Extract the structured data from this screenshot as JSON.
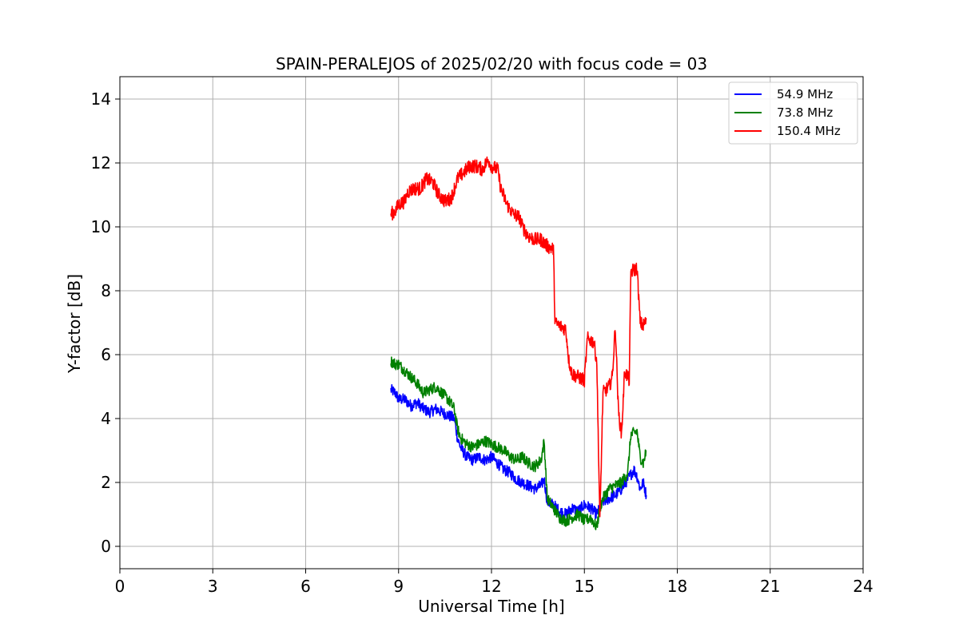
{
  "chart_data": {
    "type": "line",
    "title": "SPAIN-PERALEJOS of 2025/02/20 with focus code = 03",
    "xlabel": "Universal Time [h]",
    "ylabel": "Y-factor [dB]",
    "xlim": [
      0,
      24
    ],
    "ylim": [
      -0.7,
      14.7
    ],
    "xticks": [
      0,
      3,
      6,
      9,
      12,
      15,
      18,
      21,
      24
    ],
    "yticks": [
      0,
      2,
      4,
      6,
      8,
      10,
      12,
      14
    ],
    "grid": true,
    "legend_position": "top-right",
    "series": [
      {
        "name": "54.9 MHz",
        "color": "#0000ff",
        "points": [
          [
            8.75,
            4.9
          ],
          [
            8.9,
            4.8
          ],
          [
            9.0,
            4.6
          ],
          [
            9.2,
            4.6
          ],
          [
            9.4,
            4.4
          ],
          [
            9.6,
            4.5
          ],
          [
            9.8,
            4.3
          ],
          [
            10.0,
            4.2
          ],
          [
            10.2,
            4.3
          ],
          [
            10.4,
            4.2
          ],
          [
            10.6,
            4.1
          ],
          [
            10.8,
            4.0
          ],
          [
            10.9,
            3.4
          ],
          [
            11.0,
            3.1
          ],
          [
            11.2,
            2.8
          ],
          [
            11.4,
            2.7
          ],
          [
            11.6,
            2.8
          ],
          [
            11.8,
            2.7
          ],
          [
            12.0,
            2.8
          ],
          [
            12.2,
            2.6
          ],
          [
            12.4,
            2.4
          ],
          [
            12.6,
            2.3
          ],
          [
            12.8,
            2.1
          ],
          [
            13.0,
            2.0
          ],
          [
            13.2,
            1.9
          ],
          [
            13.4,
            1.8
          ],
          [
            13.6,
            1.9
          ],
          [
            13.7,
            2.1
          ],
          [
            13.8,
            1.4
          ],
          [
            14.0,
            1.3
          ],
          [
            14.2,
            1.1
          ],
          [
            14.4,
            1.0
          ],
          [
            14.6,
            1.2
          ],
          [
            14.8,
            1.1
          ],
          [
            15.0,
            1.3
          ],
          [
            15.2,
            1.2
          ],
          [
            15.4,
            1.0
          ],
          [
            15.5,
            1.2
          ],
          [
            15.6,
            1.4
          ],
          [
            15.8,
            1.5
          ],
          [
            16.0,
            1.6
          ],
          [
            16.2,
            1.8
          ],
          [
            16.4,
            2.1
          ],
          [
            16.6,
            2.4
          ],
          [
            16.7,
            2.2
          ],
          [
            16.8,
            1.8
          ],
          [
            16.9,
            2.0
          ],
          [
            17.0,
            1.6
          ]
        ]
      },
      {
        "name": "73.8 MHz",
        "color": "#008000",
        "points": [
          [
            8.75,
            5.8
          ],
          [
            8.9,
            5.7
          ],
          [
            9.0,
            5.7
          ],
          [
            9.2,
            5.5
          ],
          [
            9.4,
            5.3
          ],
          [
            9.6,
            5.1
          ],
          [
            9.8,
            4.8
          ],
          [
            10.0,
            4.9
          ],
          [
            10.2,
            5.0
          ],
          [
            10.4,
            4.8
          ],
          [
            10.6,
            4.6
          ],
          [
            10.8,
            4.3
          ],
          [
            10.9,
            3.7
          ],
          [
            11.0,
            3.4
          ],
          [
            11.2,
            3.2
          ],
          [
            11.4,
            3.1
          ],
          [
            11.6,
            3.2
          ],
          [
            11.8,
            3.3
          ],
          [
            12.0,
            3.2
          ],
          [
            12.2,
            3.1
          ],
          [
            12.4,
            3.0
          ],
          [
            12.6,
            2.8
          ],
          [
            12.8,
            2.7
          ],
          [
            13.0,
            2.8
          ],
          [
            13.2,
            2.6
          ],
          [
            13.4,
            2.5
          ],
          [
            13.6,
            2.7
          ],
          [
            13.7,
            3.3
          ],
          [
            13.8,
            1.5
          ],
          [
            14.0,
            1.2
          ],
          [
            14.2,
            0.9
          ],
          [
            14.4,
            0.8
          ],
          [
            14.6,
            0.9
          ],
          [
            14.8,
            1.0
          ],
          [
            15.0,
            0.8
          ],
          [
            15.2,
            0.9
          ],
          [
            15.4,
            0.6
          ],
          [
            15.5,
            1.2
          ],
          [
            15.6,
            1.5
          ],
          [
            15.8,
            1.8
          ],
          [
            16.0,
            1.9
          ],
          [
            16.2,
            2.0
          ],
          [
            16.4,
            2.3
          ],
          [
            16.5,
            3.5
          ],
          [
            16.7,
            3.6
          ],
          [
            16.8,
            2.8
          ],
          [
            16.9,
            2.6
          ],
          [
            17.0,
            3.0
          ]
        ]
      },
      {
        "name": "150.4 MHz",
        "color": "#ff0000",
        "points": [
          [
            8.75,
            10.4
          ],
          [
            8.9,
            10.5
          ],
          [
            9.0,
            10.7
          ],
          [
            9.2,
            10.8
          ],
          [
            9.3,
            11.1
          ],
          [
            9.5,
            11.2
          ],
          [
            9.7,
            11.2
          ],
          [
            9.9,
            11.5
          ],
          [
            10.1,
            11.4
          ],
          [
            10.3,
            11.0
          ],
          [
            10.5,
            10.8
          ],
          [
            10.7,
            10.9
          ],
          [
            10.8,
            11.2
          ],
          [
            10.9,
            11.5
          ],
          [
            11.1,
            11.7
          ],
          [
            11.3,
            11.9
          ],
          [
            11.5,
            11.9
          ],
          [
            11.7,
            11.8
          ],
          [
            11.9,
            12.1
          ],
          [
            12.0,
            11.9
          ],
          [
            12.2,
            11.8
          ],
          [
            12.3,
            11.2
          ],
          [
            12.5,
            10.7
          ],
          [
            12.7,
            10.4
          ],
          [
            12.9,
            10.3
          ],
          [
            13.0,
            10.0
          ],
          [
            13.2,
            9.7
          ],
          [
            13.4,
            9.6
          ],
          [
            13.6,
            9.6
          ],
          [
            13.8,
            9.4
          ],
          [
            14.0,
            9.3
          ],
          [
            14.05,
            7.0
          ],
          [
            14.2,
            6.9
          ],
          [
            14.4,
            6.8
          ],
          [
            14.5,
            5.8
          ],
          [
            14.6,
            5.4
          ],
          [
            14.8,
            5.3
          ],
          [
            15.0,
            5.2
          ],
          [
            15.1,
            6.5
          ],
          [
            15.3,
            6.4
          ],
          [
            15.4,
            5.8
          ],
          [
            15.5,
            0.8
          ],
          [
            15.6,
            4.8
          ],
          [
            15.8,
            5.0
          ],
          [
            15.9,
            5.3
          ],
          [
            16.0,
            6.9
          ],
          [
            16.1,
            4.2
          ],
          [
            16.2,
            3.5
          ],
          [
            16.3,
            5.5
          ],
          [
            16.45,
            5.2
          ],
          [
            16.5,
            8.6
          ],
          [
            16.7,
            8.7
          ],
          [
            16.8,
            7.0
          ],
          [
            16.9,
            6.9
          ],
          [
            17.0,
            7.1
          ]
        ]
      }
    ]
  }
}
